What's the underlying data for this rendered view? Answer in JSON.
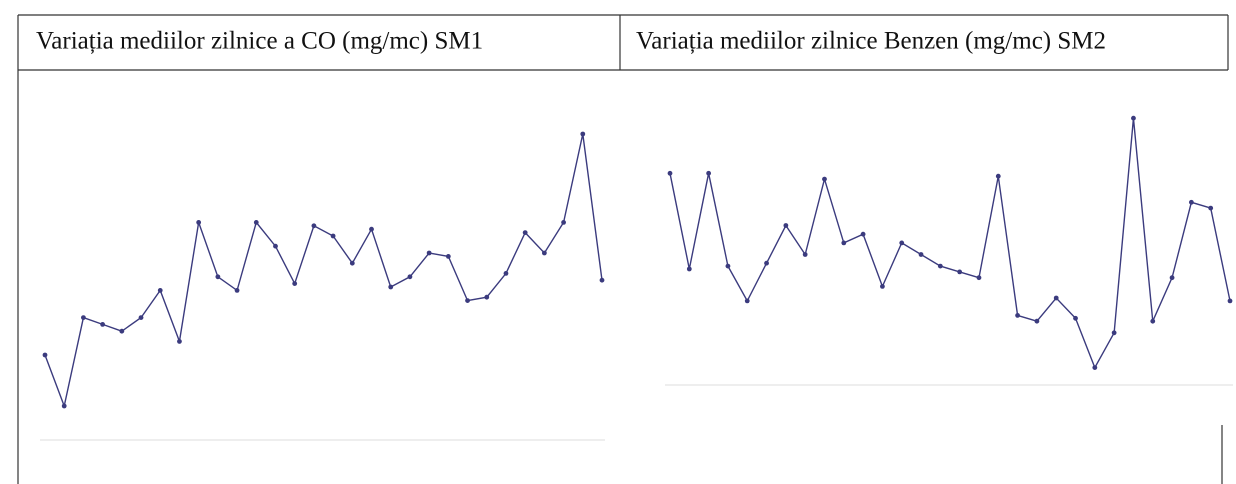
{
  "chart_data": [
    {
      "type": "line",
      "title": "Variația mediilor zilnice a CO (mg/mc) SM1",
      "color": "#3b3b7e",
      "values": [
        0.25,
        0.1,
        0.36,
        0.34,
        0.32,
        0.36,
        0.44,
        0.29,
        0.64,
        0.48,
        0.44,
        0.64,
        0.57,
        0.46,
        0.63,
        0.6,
        0.52,
        0.62,
        0.45,
        0.48,
        0.55,
        0.54,
        0.41,
        0.42,
        0.49,
        0.61,
        0.55,
        0.64,
        0.9,
        0.47
      ],
      "ylim": [
        0,
        1
      ]
    },
    {
      "type": "line",
      "title": "Variația mediilor zilnice Benzen (mg/mc) SM2",
      "color": "#3b3b7e",
      "values": [
        0.73,
        0.4,
        0.73,
        0.41,
        0.29,
        0.42,
        0.55,
        0.45,
        0.71,
        0.49,
        0.52,
        0.34,
        0.49,
        0.45,
        0.41,
        0.39,
        0.37,
        0.72,
        0.24,
        0.22,
        0.3,
        0.23,
        0.06,
        0.18,
        0.92,
        0.22,
        0.37,
        0.63,
        0.61,
        0.29
      ],
      "ylim": [
        0,
        1
      ]
    }
  ]
}
